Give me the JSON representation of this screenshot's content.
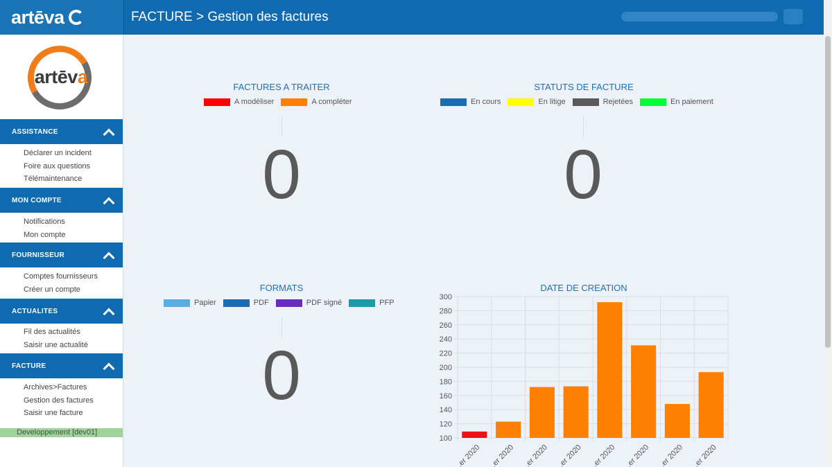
{
  "brand": {
    "name": "artēva"
  },
  "header": {
    "title": "FACTURE > Gestion des factures"
  },
  "sidebar": {
    "logo": {
      "prefix": "artēv",
      "suffix": "a"
    },
    "sections": [
      {
        "title": "ASSISTANCE",
        "items": [
          "Déclarer un incident",
          "Foire aux questions",
          "Télémaintenance"
        ]
      },
      {
        "title": "MON COMPTE",
        "items": [
          "Notifications",
          "Mon compte"
        ]
      },
      {
        "title": "FOURNISSEUR",
        "items": [
          "Comptes fournisseurs",
          "Créer un compte"
        ]
      },
      {
        "title": "ACTUALITES",
        "items": [
          "Fil des actualités",
          "Saisir une actualité"
        ]
      },
      {
        "title": "FACTURE",
        "items": [
          "Archives>Factures",
          "Gestion des factures",
          "Saisir une facture"
        ]
      }
    ],
    "environment": "Developpement [dev01]"
  },
  "panels": {
    "a_traiter": {
      "title": "FACTURES A TRAITER",
      "legend": [
        {
          "label": "A modéliser",
          "color": "#ff0000"
        },
        {
          "label": "A compléter",
          "color": "#ff7f00"
        }
      ],
      "value": "0"
    },
    "statuts": {
      "title": "STATUTS DE FACTURE",
      "legend": [
        {
          "label": "En cours",
          "color": "#1a6cb3"
        },
        {
          "label": "En litige",
          "color": "#ffff00"
        },
        {
          "label": "Rejetées",
          "color": "#595959"
        },
        {
          "label": "En paiement",
          "color": "#00ff33"
        }
      ],
      "value": "0"
    },
    "formats": {
      "title": "FORMATS",
      "legend": [
        {
          "label": "Papier",
          "color": "#5aaee6"
        },
        {
          "label": "PDF",
          "color": "#1a6cb3"
        },
        {
          "label": "PDF signé",
          "color": "#6a2bc1"
        },
        {
          "label": "PFP",
          "color": "#1b9aa8"
        }
      ],
      "value": "0"
    }
  },
  "chart_data": {
    "type": "bar",
    "title": "DATE DE CREATION",
    "categories": [
      "...er 2020",
      "...er 2020",
      "...er 2020",
      "...er 2020",
      "...er 2020",
      "...er 2020",
      "...er 2020",
      "...er 2020"
    ],
    "values": [
      109,
      123,
      172,
      173,
      292,
      231,
      148,
      193
    ],
    "colors": [
      "#ee1111",
      "#ff7f00",
      "#ff7f00",
      "#ff7f00",
      "#ff7f00",
      "#ff7f00",
      "#ff7f00",
      "#ff7f00"
    ],
    "yticks": [
      100,
      120,
      140,
      160,
      180,
      200,
      220,
      240,
      260,
      280,
      300
    ],
    "ylim": [
      100,
      300
    ],
    "grid": true,
    "xlabel": "",
    "ylabel": ""
  }
}
